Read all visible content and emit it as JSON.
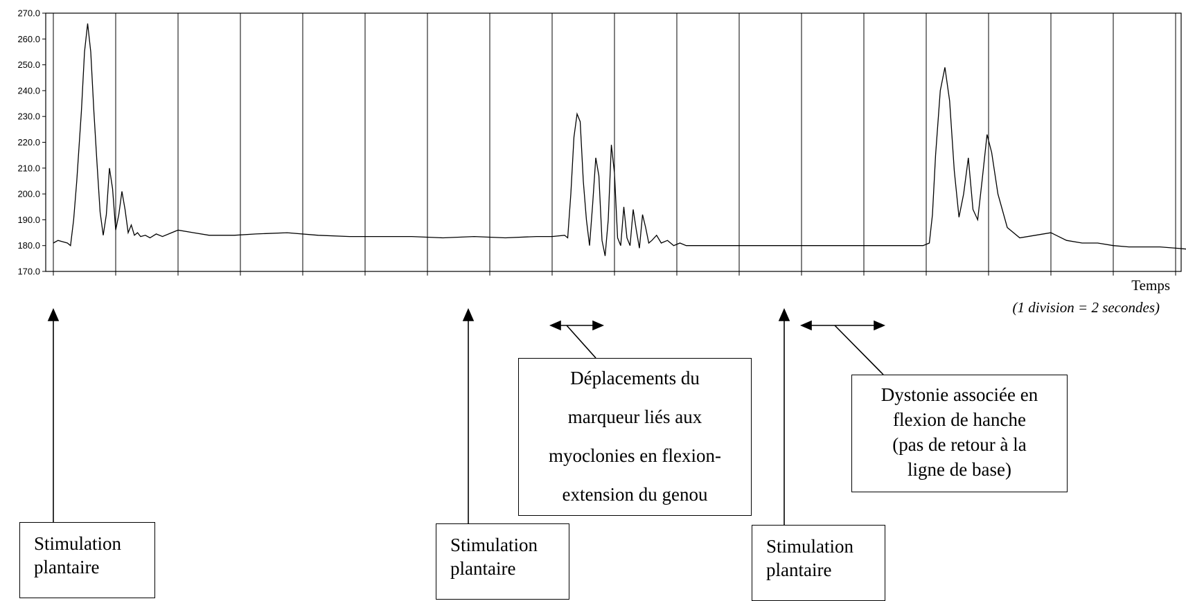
{
  "chart_data": {
    "type": "line",
    "title": "",
    "xlabel": "Temps",
    "xlabel_note": "(1 division = 2 secondes)",
    "ylabel": "",
    "ylim": [
      170,
      270
    ],
    "y_ticks": [
      "170.0",
      "180.0",
      "190.0",
      "200.0",
      "210.0",
      "220.0",
      "230.0",
      "240.0",
      "250.0",
      "260.0",
      "270.0"
    ],
    "x_divisions": 18,
    "x_unit_per_division_seconds": 2,
    "grid": "vertical",
    "legend": "none",
    "series": [
      {
        "x": [
          0.0,
          0.15,
          0.3,
          0.45,
          0.55,
          0.65,
          0.75,
          0.9,
          1.0,
          1.1,
          1.2,
          1.3,
          1.4,
          1.5,
          1.6,
          1.7,
          1.8,
          1.9,
          2.0,
          2.1,
          2.2,
          2.3,
          2.4,
          2.5,
          2.6,
          2.7,
          2.8,
          2.95,
          3.1,
          3.3,
          3.5,
          4.0,
          4.5,
          5.0,
          5.2,
          5.3,
          5.5,
          5.8,
          6.5,
          7.5,
          8.5,
          9.5,
          10.5,
          11.5,
          12.5,
          13.5,
          14.5,
          15.5,
          16.0,
          16.4,
          16.5,
          16.6,
          16.7,
          16.8,
          16.9,
          17.0,
          17.1,
          17.2,
          17.3,
          17.4,
          17.5,
          17.6,
          17.7,
          17.8,
          17.9,
          18.0,
          18.1,
          18.2,
          18.3,
          18.4,
          18.5,
          18.6,
          18.7,
          18.8,
          18.9,
          19.0,
          19.1,
          19.2,
          19.35,
          19.5,
          19.7,
          19.9,
          20.1,
          20.3,
          20.6,
          21.0,
          22.0,
          23.0,
          24.0,
          25.0,
          26.0,
          27.0,
          27.9,
          28.1,
          28.2,
          28.3,
          28.45,
          28.6,
          28.75,
          28.9,
          29.05,
          29.2,
          29.35,
          29.5,
          29.65,
          29.8,
          29.95,
          30.1,
          30.3,
          30.6,
          31.0,
          31.5,
          32.0,
          32.5,
          33.0,
          33.5,
          34.0,
          34.5,
          35.0,
          35.5,
          36.0,
          36.5,
          37.0,
          37.5,
          38.0,
          38.5,
          39.0,
          39.5,
          40.0
        ],
        "y": [
          181.0,
          182.0,
          181.5,
          181.0,
          180.0,
          190.0,
          205.0,
          232.0,
          255.0,
          266.0,
          255.0,
          232.0,
          212.0,
          193.0,
          184.0,
          192.0,
          210.0,
          202.0,
          186.0,
          192.0,
          201.0,
          194.0,
          185.0,
          188.0,
          184.0,
          185.0,
          183.5,
          184.0,
          183.0,
          184.5,
          183.5,
          186.0,
          185.0,
          184.0,
          184.0,
          184.0,
          184.0,
          184.0,
          184.5,
          185.0,
          184.0,
          183.5,
          183.5,
          183.5,
          183.0,
          183.5,
          183.0,
          183.5,
          183.5,
          184.0,
          183.0,
          200.0,
          222.0,
          231.0,
          228.0,
          205.0,
          190.0,
          180.0,
          196.0,
          214.0,
          207.0,
          182.0,
          176.0,
          190.0,
          219.0,
          208.0,
          183.0,
          180.0,
          195.0,
          183.0,
          180.0,
          194.0,
          186.0,
          179.0,
          192.0,
          187.0,
          181.0,
          182.0,
          184.0,
          181.0,
          182.0,
          180.0,
          181.0,
          180.0,
          180.0,
          180.0,
          180.0,
          180.0,
          180.0,
          180.0,
          180.0,
          180.0,
          180.0,
          181.0,
          192.0,
          215.0,
          240.0,
          249.0,
          236.0,
          209.0,
          191.0,
          200.0,
          214.0,
          194.0,
          190.0,
          206.0,
          223.0,
          216.0,
          200.0,
          187.0,
          183.0,
          184.0,
          185.0,
          182.0,
          181.0,
          181.0,
          180.0,
          179.5,
          179.5,
          179.5,
          179.0,
          178.5,
          178.5,
          179.0,
          179.0,
          179.0,
          179.0,
          179.0,
          179.0
        ]
      }
    ]
  },
  "annotations": {
    "stim1": {
      "lines": [
        "Stimulation",
        "plantaire"
      ]
    },
    "stim2": {
      "lines": [
        "Stimulation",
        "plantaire"
      ]
    },
    "stim3": {
      "lines": [
        "Stimulation",
        "plantaire"
      ]
    },
    "myoclonies": {
      "lines": [
        "Déplacements du",
        "marqueur liés aux",
        "myoclonies en flexion-",
        "extension du genou"
      ]
    },
    "dystonie": {
      "lines": [
        "Dystonie associée en",
        "flexion de hanche",
        "(pas de retour à la",
        "ligne de base)"
      ]
    }
  }
}
